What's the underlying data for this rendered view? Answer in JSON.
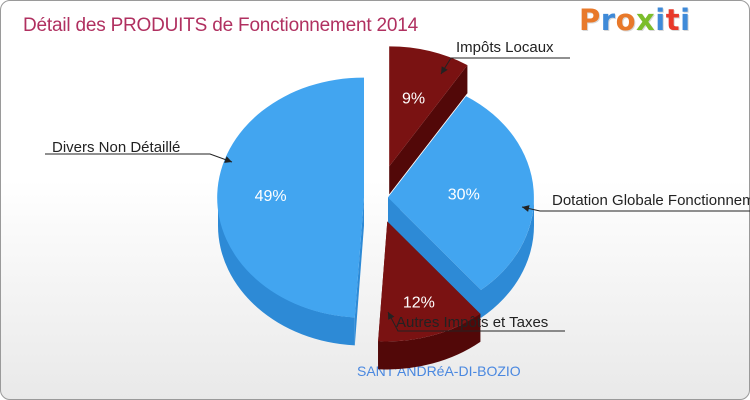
{
  "header": {
    "title": "Détail des PRODUITS de Fonctionnement 2014",
    "logo_text": "Proxiti",
    "logo_colors": [
      "#e8792a",
      "#3f8ad8",
      "#e8792a",
      "#7bbd2a",
      "#3f8ad8",
      "#e8392a",
      "#3f8ad8"
    ]
  },
  "footer": {
    "commune": "SANT'ANDRéA-DI-BOZIO"
  },
  "colors": {
    "blue": "#42a5f0",
    "blue_side": "#2d8ad6",
    "maroon": "#7a1212",
    "maroon_side": "#520808"
  },
  "chart_data": {
    "type": "pie",
    "title": "Détail des PRODUITS de Fonctionnement 2014",
    "slices": [
      {
        "label": "Impôts Locaux",
        "value": 9,
        "pct_label": "9%",
        "color": "#7a1212"
      },
      {
        "label": "Dotation Globale Fonctionnement",
        "value": 30,
        "pct_label": "30%",
        "color": "#42a5f0"
      },
      {
        "label": "Autres Impôts et Taxes",
        "value": 12,
        "pct_label": "12%",
        "color": "#7a1212"
      },
      {
        "label": "Divers Non Détaillé",
        "value": 49,
        "pct_label": "49%",
        "color": "#42a5f0"
      }
    ]
  }
}
